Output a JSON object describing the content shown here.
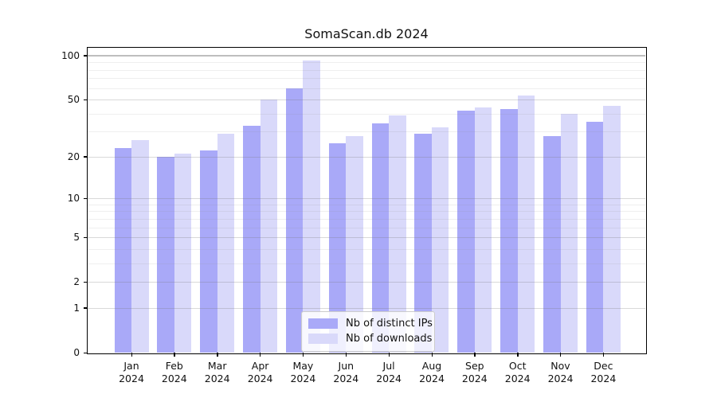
{
  "chart_data": {
    "type": "bar",
    "title": "SomaScan.db 2024",
    "xlabel": "",
    "ylabel": "",
    "yscale": "log1p",
    "grid": true,
    "legend_position": "bottom-center",
    "ylim": [
      0,
      113
    ],
    "y_ticks": [
      100,
      50,
      20,
      10,
      5,
      2,
      1,
      0
    ],
    "y_minor_ticks": [
      3,
      4,
      6,
      7,
      8,
      9,
      30,
      40,
      60,
      70,
      80,
      90
    ],
    "categories": [
      "Jan",
      "Feb",
      "Mar",
      "Apr",
      "May",
      "Jun",
      "Jul",
      "Aug",
      "Sep",
      "Oct",
      "Nov",
      "Dec"
    ],
    "category_year": "2024",
    "series": [
      {
        "name": "Nb of distinct IPs",
        "color": "#a9a9f8",
        "values": [
          23,
          20,
          22,
          33,
          60,
          25,
          34,
          29,
          42,
          43,
          28,
          35
        ]
      },
      {
        "name": "Nb of downloads",
        "color": "#d9d9fa",
        "values": [
          26,
          21,
          29,
          50,
          93,
          28,
          39,
          32,
          44,
          53,
          40,
          45
        ]
      }
    ]
  }
}
